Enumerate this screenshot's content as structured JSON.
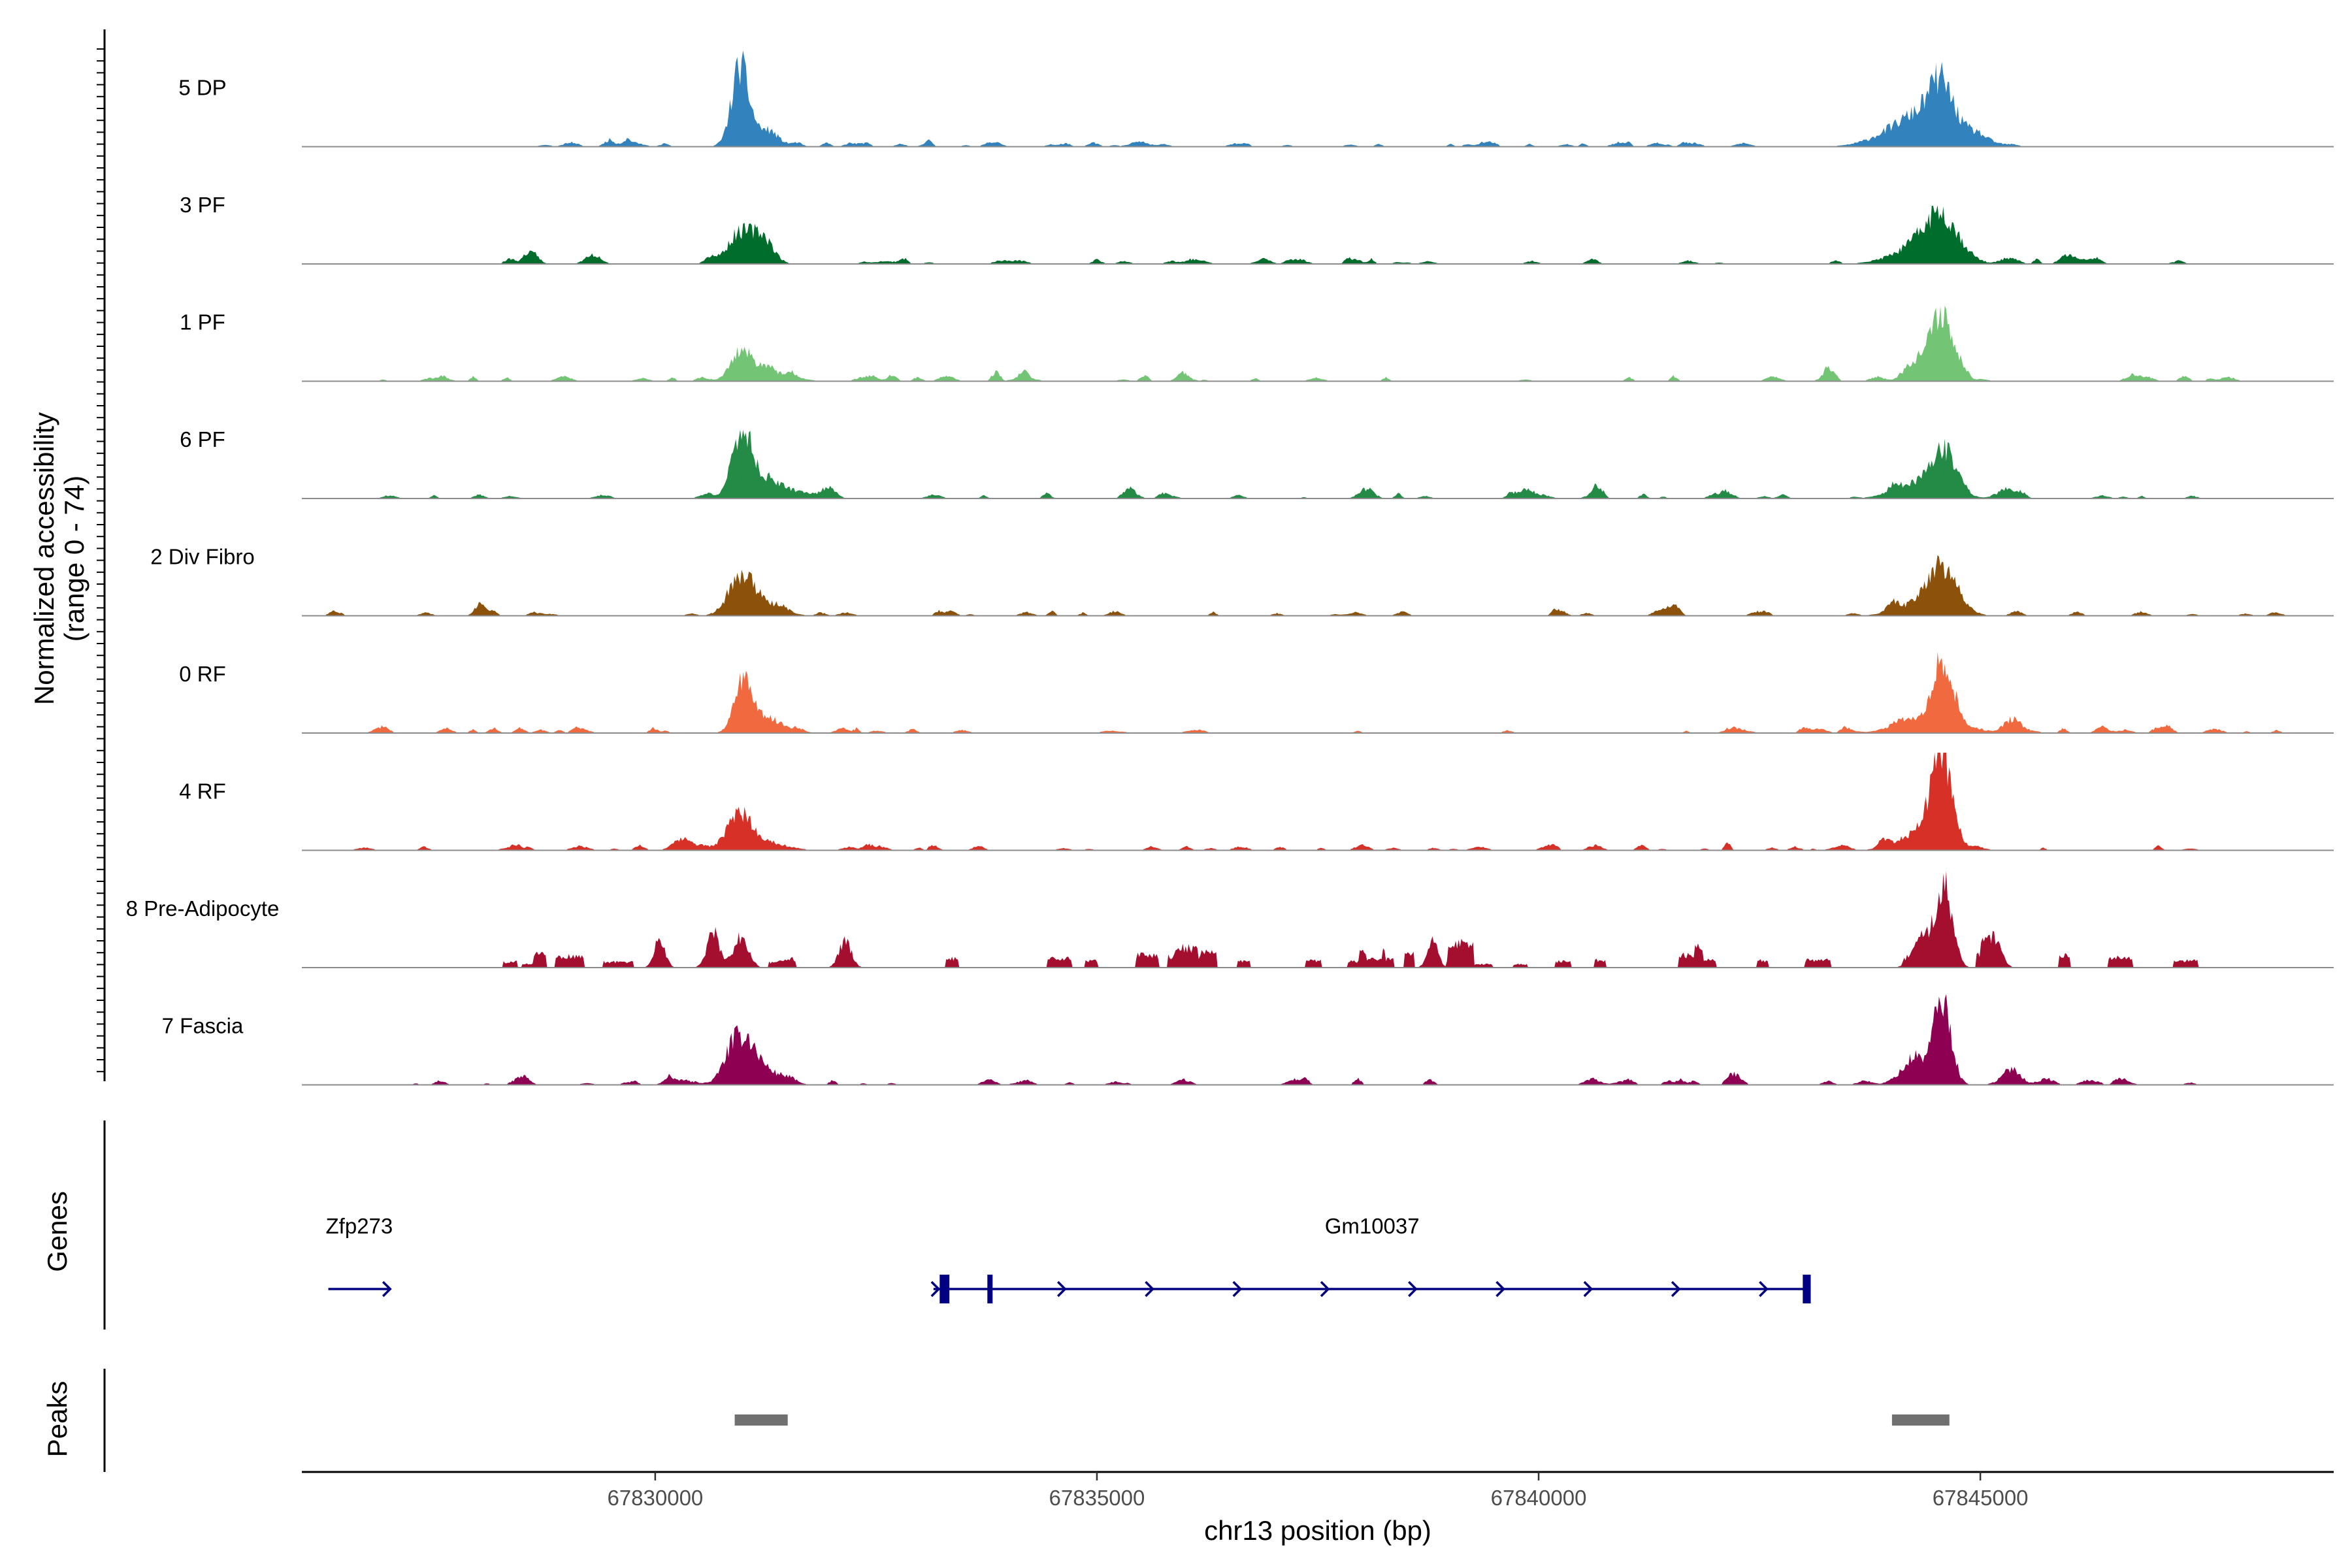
{
  "chart_data": {
    "type": "coverage",
    "ylabel": "Normalized accessibility",
    "ylabel_range": "(range 0 - 74)",
    "xlabel": "chr13 position (bp)",
    "xlim": [
      67826000,
      67849000
    ],
    "x_ticks": [
      67830000,
      67835000,
      67840000,
      67845000
    ],
    "x_tick_labels": [
      "67830000",
      "67835000",
      "67840000",
      "67845000"
    ],
    "tracks": [
      {
        "name": "5 DP",
        "color": "#3182bd",
        "peaks": [
          [
            67830960,
            42,
            90
          ],
          [
            67831150,
            10,
            200
          ],
          [
            67844400,
            22,
            380
          ],
          [
            67844550,
            22,
            120
          ]
        ],
        "noise_seed": 11,
        "noise_level": 2.2,
        "noise_span": [
          67828200,
          67845700
        ]
      },
      {
        "name": "3 PF",
        "color": "#006d2c",
        "peaks": [
          [
            67830990,
            19,
            160
          ],
          [
            67831240,
            12,
            110
          ],
          [
            67844560,
            24,
            200
          ],
          [
            67844300,
            9,
            300
          ]
        ],
        "noise_seed": 23,
        "noise_level": 2.8,
        "noise_span": [
          67827800,
          67847300
        ]
      },
      {
        "name": "1 PF",
        "color": "#74c476",
        "peaks": [
          [
            67830970,
            16,
            110
          ],
          [
            67831250,
            6,
            260
          ],
          [
            67844560,
            42,
            120
          ],
          [
            67844260,
            12,
            120
          ]
        ],
        "noise_seed": 37,
        "noise_level": 3.0,
        "noise_span": [
          67826100,
          67847900
        ]
      },
      {
        "name": "6 PF",
        "color": "#238b45",
        "peaks": [
          [
            67830990,
            36,
            110
          ],
          [
            67831250,
            10,
            280
          ],
          [
            67844590,
            25,
            150
          ],
          [
            67844250,
            8,
            250
          ],
          [
            67845320,
            6,
            120
          ]
        ],
        "noise_seed": 41,
        "noise_level": 2.8,
        "noise_span": [
          67826700,
          67847700
        ]
      },
      {
        "name": "2 Div Fibro",
        "color": "#8c510a",
        "peaks": [
          [
            67830960,
            18,
            140
          ],
          [
            67831200,
            7,
            220
          ],
          [
            67844570,
            24,
            180
          ],
          [
            67844300,
            6,
            260
          ]
        ],
        "noise_seed": 53,
        "noise_level": 3.0,
        "noise_span": [
          67826200,
          67848500
        ]
      },
      {
        "name": "0 RF",
        "color": "#f16a3f",
        "peaks": [
          [
            67830990,
            30,
            90
          ],
          [
            67831220,
            10,
            200
          ],
          [
            67844580,
            38,
            110
          ],
          [
            67844400,
            10,
            300
          ],
          [
            67845360,
            6,
            110
          ]
        ],
        "noise_seed": 67,
        "noise_level": 2.5,
        "noise_span": [
          67826800,
          67848600
        ]
      },
      {
        "name": "4 RF",
        "color": "#d73027",
        "peaks": [
          [
            67830940,
            18,
            130
          ],
          [
            67831180,
            6,
            250
          ],
          [
            67830320,
            7,
            110
          ],
          [
            67844560,
            54,
            110
          ],
          [
            67844360,
            12,
            260
          ]
        ],
        "noise_seed": 79,
        "noise_level": 2.8,
        "noise_span": [
          67826600,
          67847600
        ]
      },
      {
        "name": "8 Pre-Adipocyte",
        "color": "#a50f2f",
        "peaks": [
          [
            67830050,
            18,
            60
          ],
          [
            67830650,
            20,
            70
          ],
          [
            67830980,
            18,
            80
          ],
          [
            67832150,
            16,
            70
          ],
          [
            67838800,
            16,
            60
          ],
          [
            67844600,
            48,
            90
          ],
          [
            67844380,
            18,
            120
          ],
          [
            67845220,
            9,
            60
          ]
        ],
        "noise_seed": 91,
        "noise_level": 6.5,
        "noise_span": [
          67827900,
          67848000
        ],
        "blocky": true
      },
      {
        "name": "7 Fascia",
        "color": "#8e0152",
        "peaks": [
          [
            67830960,
            26,
            150
          ],
          [
            67831250,
            8,
            200
          ],
          [
            67844570,
            46,
            100
          ],
          [
            67844260,
            14,
            160
          ],
          [
            67845350,
            7,
            120
          ]
        ],
        "noise_seed": 97,
        "noise_level": 3.2,
        "noise_span": [
          67826900,
          67848000
        ]
      }
    ],
    "genes": [
      {
        "name": "Zfp273",
        "start": 67826300,
        "end": 67827000,
        "strand": "+",
        "exons": []
      },
      {
        "name": "Gm10037",
        "start": 67833150,
        "end": 67843080,
        "strand": "+",
        "exons": [
          [
            67833220,
            67833330
          ],
          [
            67833760,
            67833800
          ],
          [
            67842990,
            67843080
          ]
        ]
      }
    ],
    "gene_track_label": "Genes",
    "peaks_track_label": "Peaks",
    "peak_regions": [
      [
        67830900,
        67831500
      ],
      [
        67844000,
        67844650
      ]
    ],
    "peak_color": "#707070"
  }
}
